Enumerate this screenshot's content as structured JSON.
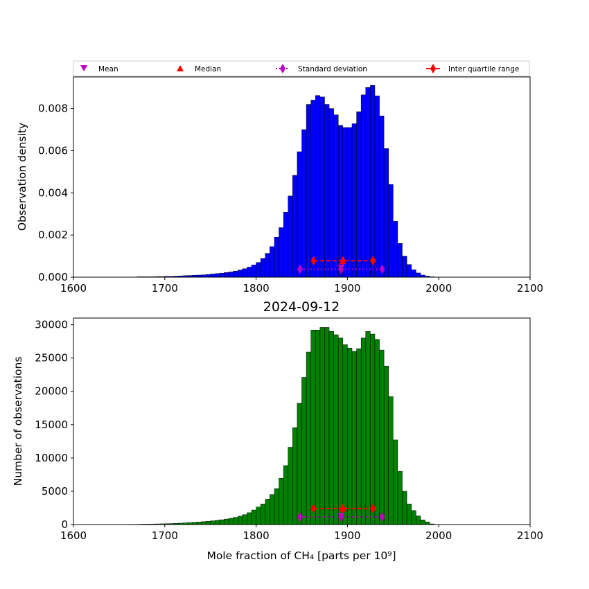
{
  "colors": {
    "density_bars": "#0000ff",
    "count_bars": "#008000",
    "mean": "#c000c0",
    "median": "#ff0000",
    "std": "#c000c0",
    "iqr": "#ff0000",
    "bar_edge": "#000000"
  },
  "legend": {
    "placement": "top, above upper panel",
    "entries": [
      {
        "key": "mean",
        "label": "Mean",
        "marker": "triangle-down"
      },
      {
        "key": "median",
        "label": "Median",
        "marker": "triangle-up"
      },
      {
        "key": "std",
        "label": "Standard deviation",
        "marker": "diamond-dotted-line"
      },
      {
        "key": "iqr",
        "label": "Inter quartile range",
        "marker": "diamond-solid-line"
      }
    ]
  },
  "chart_data": [
    {
      "type": "bar",
      "panel": "top",
      "title": "",
      "xlabel": "",
      "ylabel": "Observation density",
      "xlim": [
        1600,
        2100
      ],
      "ylim": [
        0,
        0.0095
      ],
      "xticks": [
        "1600",
        "1700",
        "1800",
        "1900",
        "2000",
        "2100"
      ],
      "yticks": [
        "0.000",
        "0.002",
        "0.004",
        "0.006",
        "0.008"
      ],
      "grid": false,
      "bin_start": 1660,
      "bin_width": 5,
      "values": [
        1e-05,
        1e-05,
        2e-05,
        2e-05,
        2e-05,
        2e-05,
        3e-05,
        3e-05,
        4e-05,
        4e-05,
        5e-05,
        6e-05,
        7e-05,
        8e-05,
        9e-05,
        0.0001,
        0.00011,
        0.00013,
        0.00015,
        0.00017,
        0.00019,
        0.00022,
        0.00025,
        0.00029,
        0.00034,
        0.0004,
        0.00048,
        0.00058,
        0.0007,
        0.00089,
        0.00113,
        0.00145,
        0.0019,
        0.00235,
        0.00308,
        0.00385,
        0.00483,
        0.00595,
        0.007,
        0.0082,
        0.0084,
        0.00862,
        0.00855,
        0.0082,
        0.008,
        0.0077,
        0.0072,
        0.0071,
        0.0071,
        0.00728,
        0.00785,
        0.00865,
        0.009,
        0.0091,
        0.0086,
        0.00765,
        0.0061,
        0.0044,
        0.00265,
        0.0016,
        0.001,
        0.0006,
        0.00035,
        0.0002,
        0.0001,
        5e-05,
        2e-05
      ],
      "stats": {
        "mean": {
          "x": 1893,
          "y": 0.00043
        },
        "median": {
          "x": 1895,
          "y": 0.00075
        },
        "std": {
          "x": [
            1848,
            1893,
            1938
          ],
          "y": 0.00038
        },
        "iqr": {
          "x": [
            1863,
            1895,
            1928
          ],
          "y": 0.00078
        }
      }
    },
    {
      "type": "bar",
      "panel": "bottom",
      "title": "2024-09-12",
      "xlabel": "Mole fraction of CH₄ [parts per 10⁹]",
      "ylabel": "Number of observations",
      "xlim": [
        1600,
        2100
      ],
      "ylim": [
        0,
        31000
      ],
      "xticks": [
        "1600",
        "1700",
        "1800",
        "1900",
        "2000",
        "2100"
      ],
      "yticks": [
        "0",
        "5000",
        "10000",
        "15000",
        "20000",
        "25000",
        "30000"
      ],
      "grid": false,
      "bin_start": 1660,
      "bin_width": 5,
      "values": [
        30,
        30,
        50,
        60,
        70,
        80,
        100,
        110,
        130,
        150,
        180,
        210,
        250,
        290,
        330,
        380,
        430,
        490,
        560,
        630,
        720,
        820,
        940,
        1080,
        1260,
        1480,
        1780,
        2180,
        2640,
        3100,
        3800,
        4500,
        5400,
        6950,
        8850,
        11600,
        14550,
        18200,
        22100,
        25900,
        29200,
        29200,
        29600,
        29600,
        29000,
        28500,
        28000,
        27000,
        26500,
        26000,
        26400,
        28000,
        29000,
        28600,
        27800,
        26200,
        23800,
        19200,
        12700,
        8000,
        5000,
        3100,
        2100,
        1300,
        700,
        400,
        100
      ],
      "stats": {
        "mean": {
          "x": 1893,
          "y": 1250
        },
        "median": {
          "x": 1895,
          "y": 2350
        },
        "std": {
          "x": [
            1848,
            1893,
            1938
          ],
          "y": 1150
        },
        "iqr": {
          "x": [
            1863,
            1895,
            1928
          ],
          "y": 2400
        }
      }
    }
  ]
}
